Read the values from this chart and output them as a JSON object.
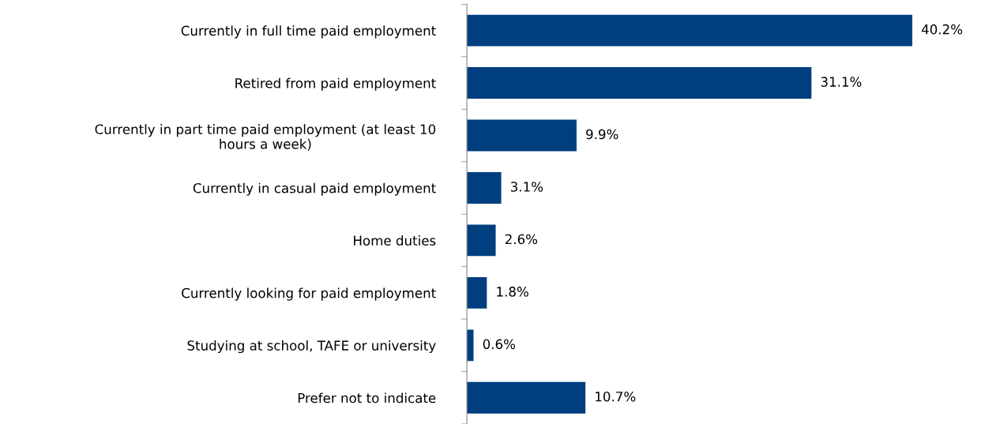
{
  "chart_data": {
    "type": "bar",
    "orientation": "horizontal",
    "categories": [
      "Currently in full time paid employment",
      "Retired from paid employment",
      "Currently in part time paid employment (at least 10\nhours a week)",
      "Currently in casual paid employment",
      "Home duties",
      "Currently looking for paid employment",
      "Studying at school, TAFE or university",
      "Prefer not to indicate"
    ],
    "values": [
      40.2,
      31.1,
      9.9,
      3.1,
      2.6,
      1.8,
      0.6,
      10.7
    ],
    "value_labels": [
      "40.2%",
      "31.1%",
      "9.9%",
      "3.1%",
      "2.6%",
      "1.8%",
      "0.6%",
      "10.7%"
    ],
    "color": "#003f7f",
    "tick_labels": "y",
    "grid": false,
    "legend": false
  }
}
